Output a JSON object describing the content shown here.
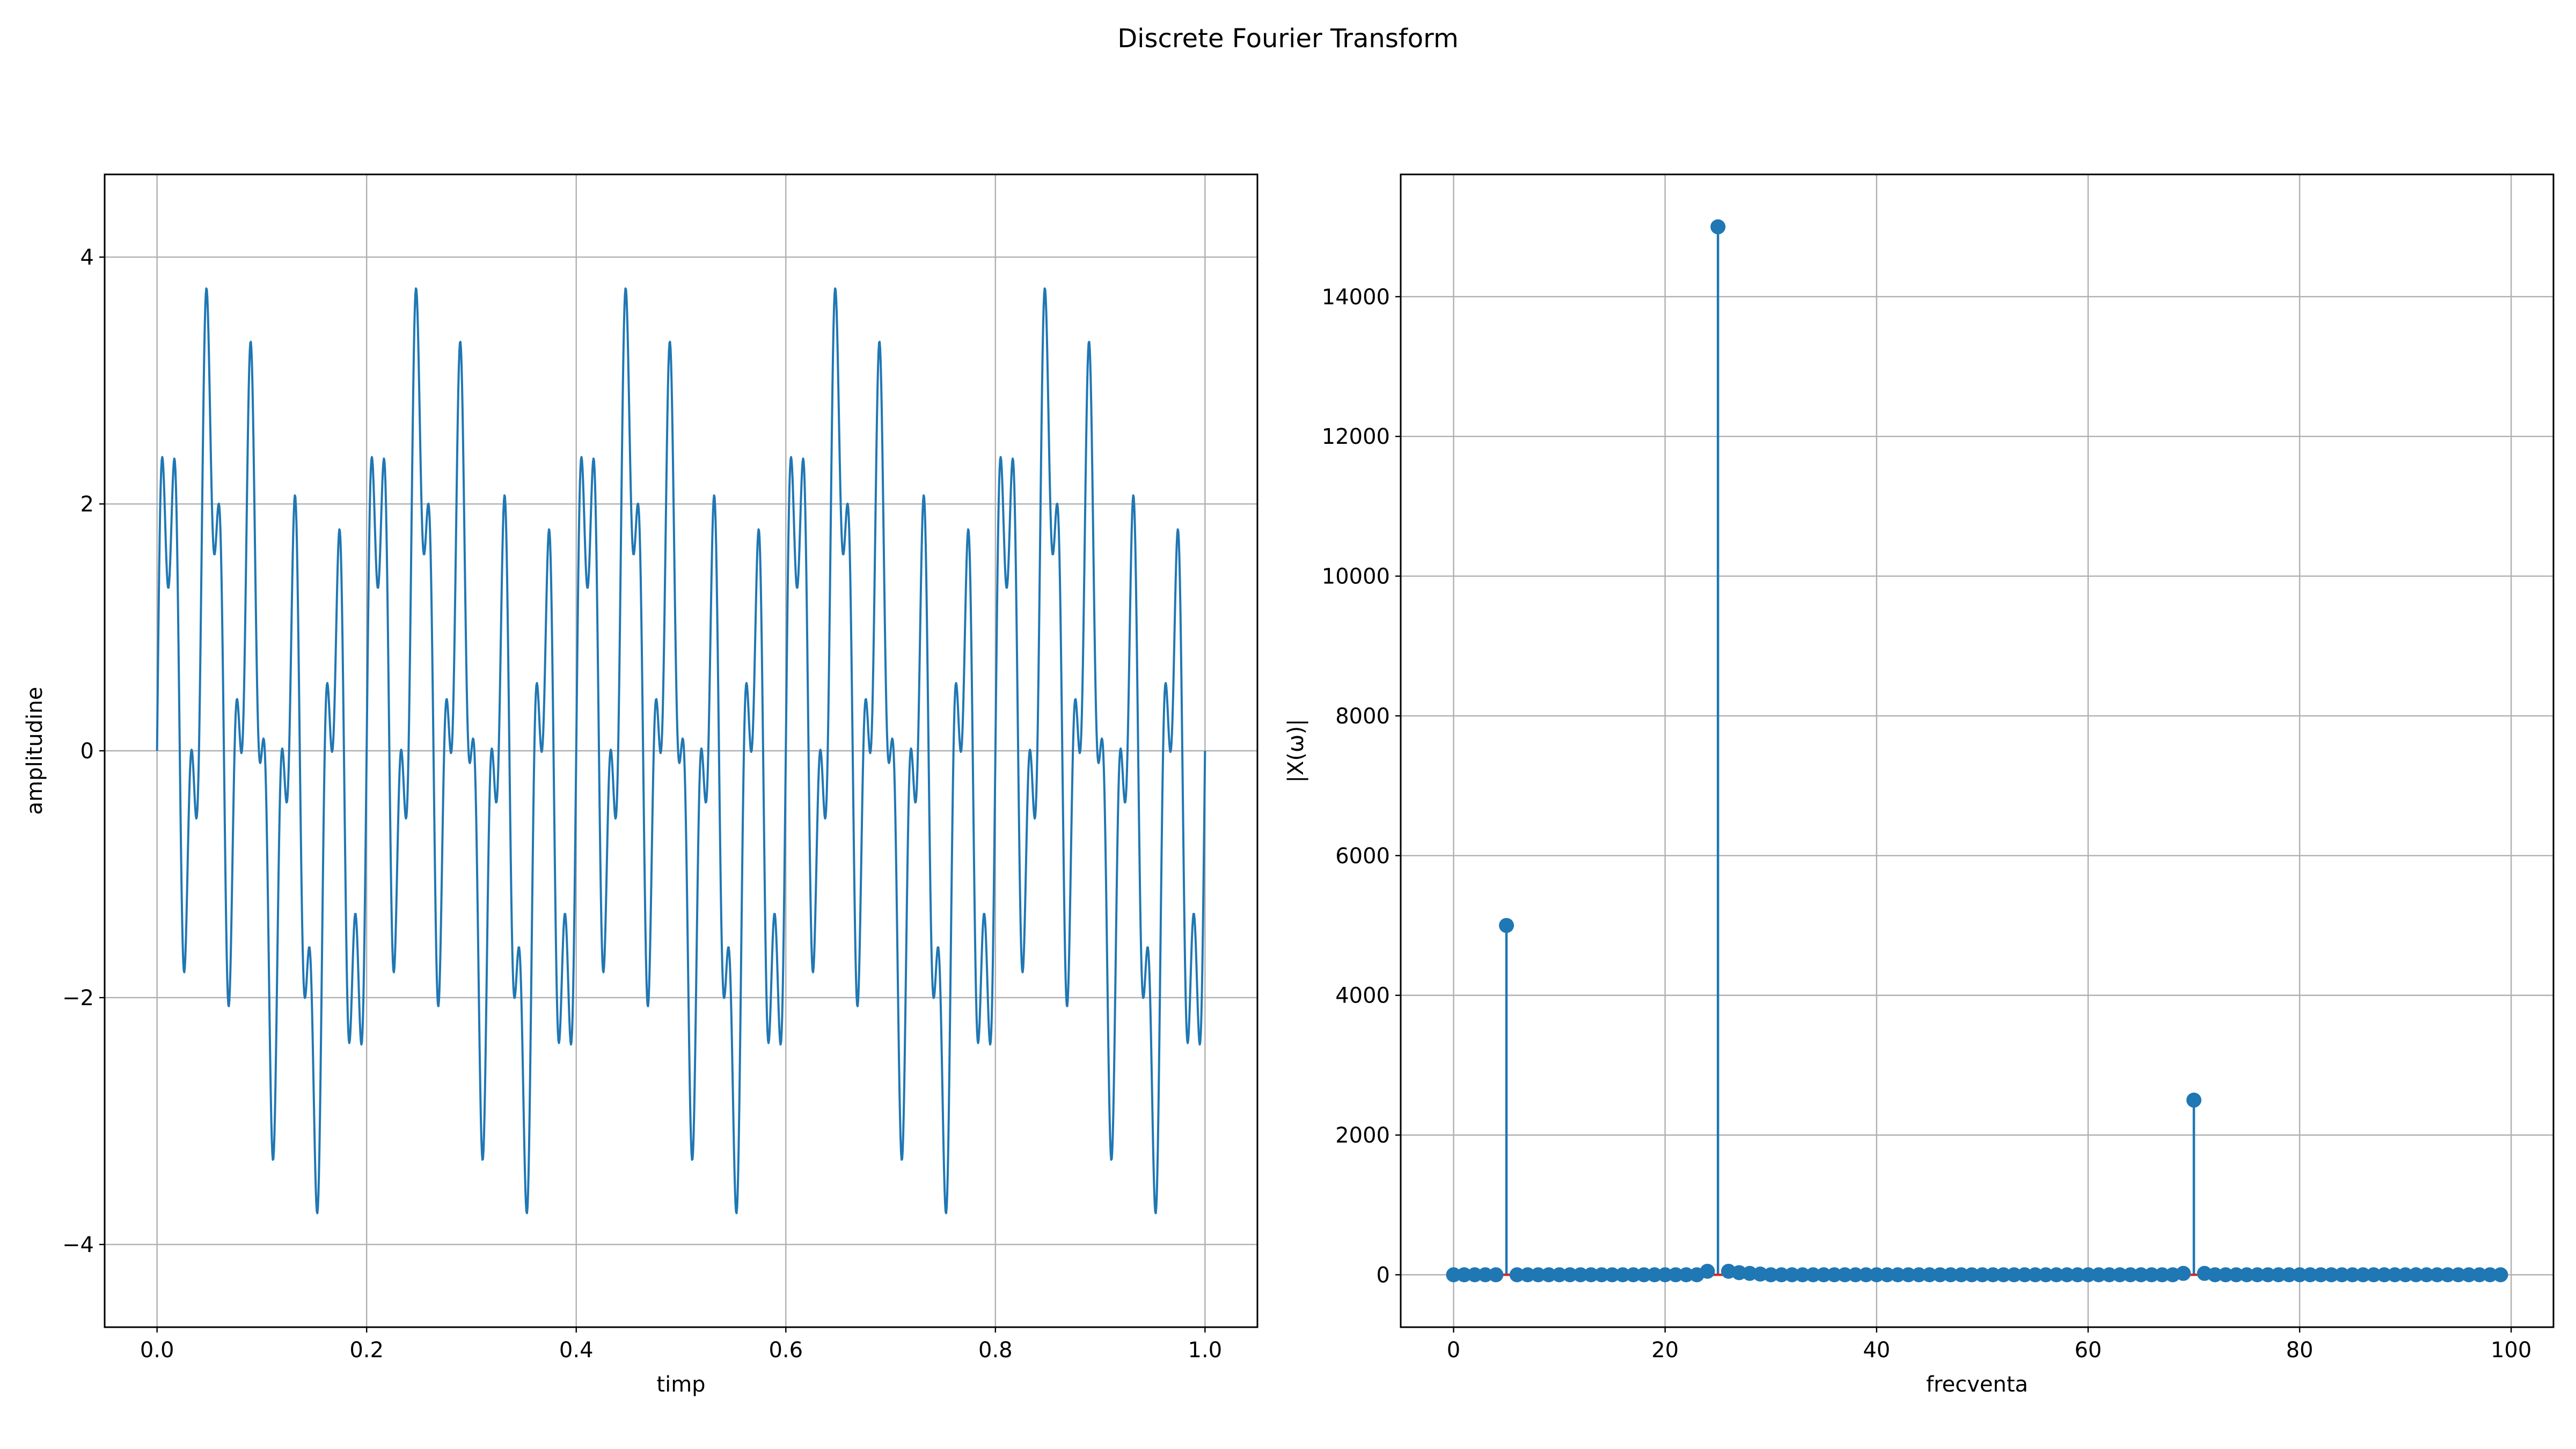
{
  "figure": {
    "suptitle": "Discrete Fourier Transform"
  },
  "colors": {
    "line": "#1f77b4",
    "baseline": "#d62728",
    "grid": "#b0b0b0",
    "axes": "#000000"
  },
  "chart_data": [
    {
      "type": "line",
      "title": "",
      "xlabel": "timp",
      "ylabel": "amplitudine",
      "xlim": [
        -0.05,
        1.05
      ],
      "ylim": [
        -4.67,
        4.67
      ],
      "xticks": [
        0.0,
        0.2,
        0.4,
        0.6,
        0.8,
        1.0
      ],
      "xtick_labels": [
        "0.0",
        "0.2",
        "0.4",
        "0.6",
        "0.8",
        "1.0"
      ],
      "yticks": [
        -4,
        -2,
        0,
        2,
        4
      ],
      "ytick_labels": [
        "−4",
        "−2",
        "0",
        "2",
        "4"
      ],
      "grid": true,
      "legend": "none",
      "series": [
        {
          "formula": "sin(2π·5·t) + 2·sin(2π·25·t) + sin(2π·70·t) (implied by DFT peaks; sampled 0–1)",
          "components": [
            {
              "frequency": 5,
              "amplitude": 1
            },
            {
              "frequency": 25,
              "amplitude": 2
            },
            {
              "frequency": 70,
              "amplitude": 1
            }
          ],
          "x_start": 0,
          "x_end": 1,
          "samples": 2000
        }
      ]
    },
    {
      "type": "stem",
      "title": "",
      "xlabel": "frecventa",
      "ylabel": "|X(ω)|",
      "xlim": [
        -5,
        104
      ],
      "ylim": [
        -750,
        15750
      ],
      "xticks": [
        0,
        20,
        40,
        60,
        80,
        100
      ],
      "xtick_labels": [
        "0",
        "20",
        "40",
        "60",
        "80",
        "100"
      ],
      "yticks": [
        0,
        2000,
        4000,
        6000,
        8000,
        10000,
        12000,
        14000
      ],
      "ytick_labels": [
        "0",
        "2000",
        "4000",
        "6000",
        "8000",
        "10000",
        "12000",
        "14000"
      ],
      "grid": true,
      "legend": "none",
      "x": [
        0,
        1,
        2,
        3,
        4,
        5,
        6,
        7,
        8,
        9,
        10,
        11,
        12,
        13,
        14,
        15,
        16,
        17,
        18,
        19,
        20,
        21,
        22,
        23,
        24,
        25,
        26,
        27,
        28,
        29,
        30,
        31,
        32,
        33,
        34,
        35,
        36,
        37,
        38,
        39,
        40,
        41,
        42,
        43,
        44,
        45,
        46,
        47,
        48,
        49,
        50,
        51,
        52,
        53,
        54,
        55,
        56,
        57,
        58,
        59,
        60,
        61,
        62,
        63,
        64,
        65,
        66,
        67,
        68,
        69,
        70,
        71,
        72,
        73,
        74,
        75,
        76,
        77,
        78,
        79,
        80,
        81,
        82,
        83,
        84,
        85,
        86,
        87,
        88,
        89,
        90,
        91,
        92,
        93,
        94,
        95,
        96,
        97,
        98,
        99
      ],
      "values": [
        0,
        0,
        0,
        0,
        0,
        5000,
        0,
        0,
        0,
        0,
        0,
        0,
        0,
        0,
        0,
        0,
        0,
        0,
        0,
        0,
        0,
        0,
        0,
        0,
        50,
        15000,
        50,
        30,
        20,
        10,
        0,
        0,
        0,
        0,
        0,
        0,
        0,
        0,
        0,
        0,
        0,
        0,
        0,
        0,
        0,
        0,
        0,
        0,
        0,
        0,
        0,
        0,
        0,
        0,
        0,
        0,
        0,
        0,
        0,
        0,
        0,
        0,
        0,
        0,
        0,
        0,
        0,
        0,
        0,
        20,
        2500,
        20,
        0,
        0,
        0,
        0,
        0,
        0,
        0,
        0,
        0,
        0,
        0,
        0,
        0,
        0,
        0,
        0,
        0,
        0,
        0,
        0,
        0,
        0,
        0,
        0,
        0,
        0,
        0,
        0
      ]
    }
  ]
}
